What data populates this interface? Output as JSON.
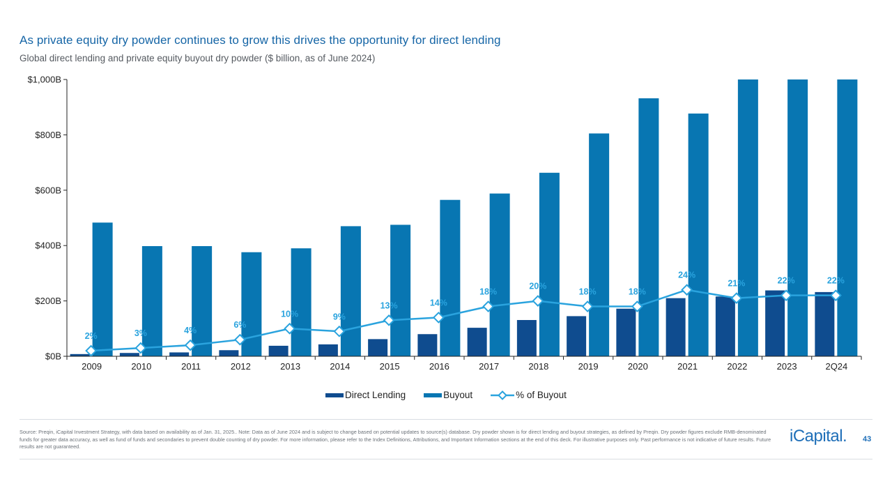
{
  "header": {
    "title": "As private equity dry powder continues to grow this drives the opportunity for direct lending",
    "subtitle": "Global direct lending and private equity buyout dry powder ($ billion, as of June 2024)"
  },
  "colors": {
    "direct_lending": "#0f4c8f",
    "buyout": "#0876b2",
    "pct_line": "#2aa3de",
    "axis": "#222222",
    "title": "#1565a6"
  },
  "chart_data": {
    "type": "bar",
    "categories": [
      "2009",
      "2010",
      "2011",
      "2012",
      "2013",
      "2014",
      "2015",
      "2016",
      "2017",
      "2018",
      "2019",
      "2020",
      "2021",
      "2022",
      "2023",
      "2Q24"
    ],
    "series": [
      {
        "name": "Direct Lending",
        "kind": "bar",
        "values": [
          8,
          12,
          14,
          22,
          38,
          43,
          62,
          80,
          103,
          131,
          145,
          172,
          210,
          216,
          238,
          232
        ]
      },
      {
        "name": "Buyout",
        "kind": "bar",
        "values": [
          483,
          398,
          398,
          376,
          390,
          470,
          475,
          565,
          588,
          663,
          805,
          932,
          877,
          1000,
          1000,
          1000
        ]
      },
      {
        "name": "% of Buyout",
        "kind": "line",
        "axis": "secondary",
        "values": [
          2,
          3,
          4,
          6,
          10,
          9,
          13,
          14,
          18,
          20,
          18,
          18,
          24,
          21,
          22,
          22
        ]
      }
    ],
    "pct_labels": [
      "2%",
      "3%",
      "4%",
      "6%",
      "10%",
      "9%",
      "13%",
      "14%",
      "18%",
      "20%",
      "18%",
      "18%",
      "24%",
      "21%",
      "22%",
      "22%"
    ],
    "y_ticks": [
      "$0B",
      "$200B",
      "$400B",
      "$600B",
      "$800B",
      "$1,000B"
    ],
    "ylim": [
      0,
      1000
    ],
    "pct_axis_range": [
      0,
      100
    ],
    "title": "",
    "xlabel": "",
    "ylabel": "",
    "grid": false,
    "legend_position": "bottom-center"
  },
  "legend": [
    {
      "label": "Direct Lending"
    },
    {
      "label": "Buyout"
    },
    {
      "label": "% of Buyout"
    }
  ],
  "footer": {
    "source_text": "Source: Preqin, iCapital Investment Strategy, with data based on availability as of Jan. 31, 2025.. Note: Data as of June 2024 and is subject to change based on potential updates to source(s) database. Dry powder shown is for direct lending and buyout strategies, as defined by Preqin. Dry powder figures exclude RMB-denominated funds for greater data accuracy, as well as fund of funds and secondaries to prevent double counting of dry powder. For more information, please refer to the Index Definitions, Attributions, and Important Information sections at the end of this deck. For illustrative purposes only. Past performance is not indicative of future results. Future results are not guaranteed.",
    "logo": "iCapital.",
    "page_number": "43"
  }
}
